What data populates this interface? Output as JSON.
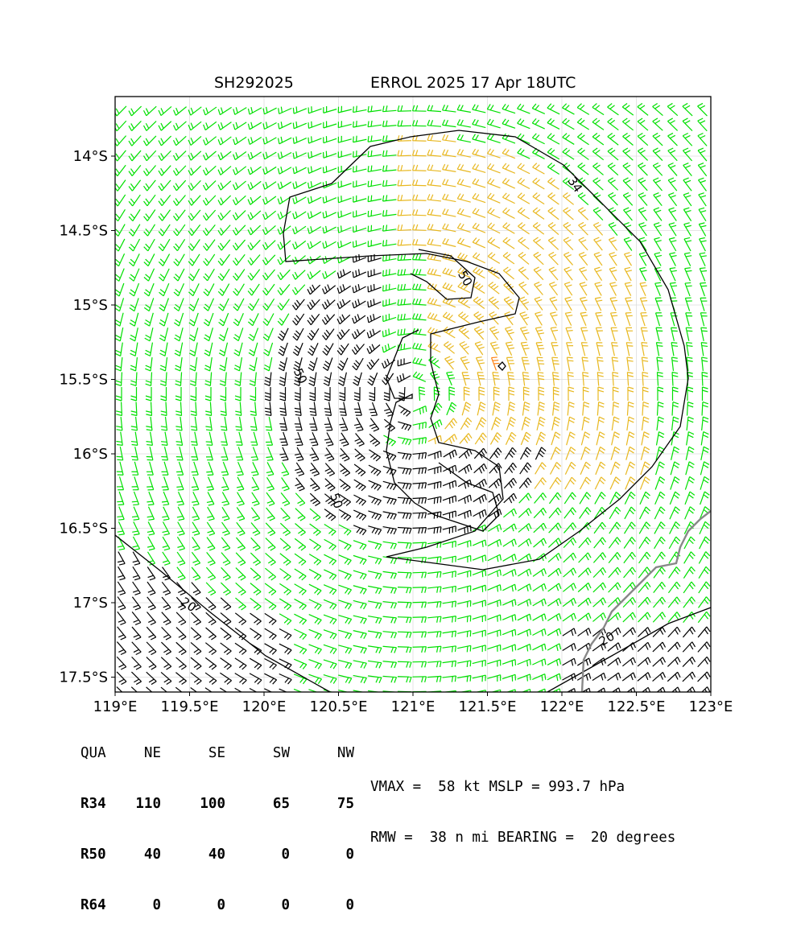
{
  "title": {
    "storm_id": "SH292025",
    "storm_name_time": "ERROL 2025 17 Apr 18UTC"
  },
  "map": {
    "lon_range": [
      119.0,
      123.0
    ],
    "lat_range": [
      -17.6,
      -13.6
    ],
    "lon_ticks": [
      {
        "value": 119.0,
        "label": "119°E"
      },
      {
        "value": 119.5,
        "label": "119.5°E"
      },
      {
        "value": 120.0,
        "label": "120°E"
      },
      {
        "value": 120.5,
        "label": "120.5°E"
      },
      {
        "value": 121.0,
        "label": "121°E"
      },
      {
        "value": 121.5,
        "label": "121.5°E"
      },
      {
        "value": 122.0,
        "label": "122°E"
      },
      {
        "value": 122.5,
        "label": "122.5°E"
      },
      {
        "value": 123.0,
        "label": "123°E"
      }
    ],
    "lat_ticks": [
      {
        "value": -14.0,
        "label": "14°S"
      },
      {
        "value": -14.5,
        "label": "14.5°S"
      },
      {
        "value": -15.0,
        "label": "15°S"
      },
      {
        "value": -15.5,
        "label": "15.5°S"
      },
      {
        "value": -16.0,
        "label": "16°S"
      },
      {
        "value": -16.5,
        "label": "16.5°S"
      },
      {
        "value": -17.0,
        "label": "17°S"
      },
      {
        "value": -17.5,
        "label": "17.5°S"
      }
    ],
    "storm_center": {
      "lon": 121.0,
      "lat": -15.6
    },
    "wind_colors": {
      "below_34": "#000000",
      "34_to_50": "#00e000",
      "50_to_64": "#e8b820",
      "above_64": "#ff7f0e"
    },
    "coastline_color": "#888888",
    "contour_labels": [
      "34",
      "50",
      "20",
      "50",
      "20",
      "50"
    ]
  },
  "wind_radii": {
    "header": [
      "QUA",
      "NE",
      "SE",
      "SW",
      "NW"
    ],
    "rows": [
      {
        "label": "R34",
        "values": [
          "110",
          "100",
          "65",
          "75"
        ]
      },
      {
        "label": "R50",
        "values": [
          "40",
          "40",
          "0",
          "0"
        ]
      },
      {
        "label": "R64",
        "values": [
          "0",
          "0",
          "0",
          "0"
        ]
      }
    ]
  },
  "stats": {
    "line1": "VMAX =  58 kt MSLP = 993.7 hPa",
    "line2": "RMW =  38 n mi BEARING =  20 degrees"
  }
}
